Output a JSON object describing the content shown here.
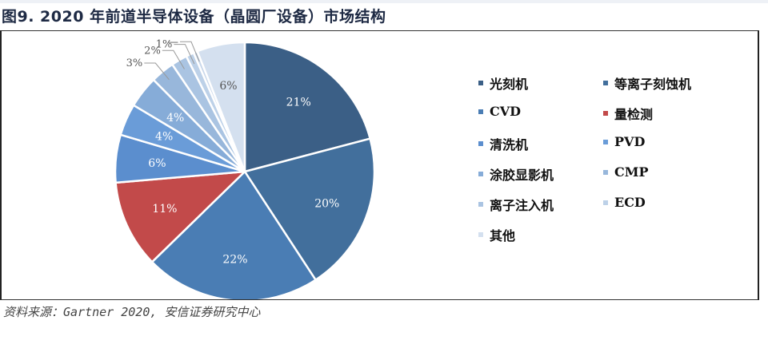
{
  "header": {
    "title": "图9. 2020 年前道半导体设备（晶圆厂设备）市场结构"
  },
  "footer": {
    "source": "资料来源：Gartner 2020, 安信证券研究中心"
  },
  "chart_data": {
    "type": "pie",
    "title": "图9. 2020 年前道半导体设备（晶圆厂设备）市场结构",
    "start_angle_deg": 0,
    "direction": "clockwise",
    "legend_position": "right",
    "slices": [
      {
        "name": "光刻机",
        "value": 21,
        "label": "21%",
        "color": "#3b5f86",
        "label_inside": true
      },
      {
        "name": "等离子刻蚀机",
        "value": 20,
        "label": "20%",
        "color": "#426f9c",
        "label_inside": true
      },
      {
        "name": "CVD",
        "value": 22,
        "label": "22%",
        "color": "#4a7db4",
        "label_inside": true
      },
      {
        "name": "量检测",
        "value": 11,
        "label": "11%",
        "color": "#c24a4a",
        "label_inside": true
      },
      {
        "name": "清洗机",
        "value": 6,
        "label": "6%",
        "color": "#5b8ece",
        "label_inside": true
      },
      {
        "name": "PVD",
        "value": 4,
        "label": "4%",
        "color": "#6a9cd8",
        "label_inside": true
      },
      {
        "name": "涂胶显影机",
        "value": 4,
        "label": "4%",
        "color": "#86acd8",
        "label_inside": true
      },
      {
        "name": "CMP",
        "value": 3,
        "label": "3%",
        "color": "#98b7db",
        "label_inside": false
      },
      {
        "name": "离子注入机",
        "value": 2,
        "label": "2%",
        "color": "#aac4e2",
        "label_inside": false
      },
      {
        "name": "ECD",
        "value": 1,
        "label": "1%",
        "color": "#bdd1e8",
        "label_inside": false
      },
      {
        "name": "—",
        "value": 0.5,
        "label": "—",
        "color": "#c8d7ea",
        "label_inside": false
      },
      {
        "name": "其他",
        "value": 6,
        "label": "6%",
        "color": "#d4e0ef",
        "label_inside": true
      }
    ],
    "legend": [
      {
        "label": "光刻机",
        "color": "#3b5f86"
      },
      {
        "label": "等离子刻蚀机",
        "color": "#426f9c"
      },
      {
        "label": "CVD",
        "color": "#4a7db4"
      },
      {
        "label": "量检测",
        "color": "#c24a4a"
      },
      {
        "label": "清洗机",
        "color": "#5b8ece"
      },
      {
        "label": "PVD",
        "color": "#6a9cd8"
      },
      {
        "label": "涂胶显影机",
        "color": "#86acd8"
      },
      {
        "label": "CMP",
        "color": "#98b7db"
      },
      {
        "label": "离子注入机",
        "color": "#aac4e2"
      },
      {
        "label": "ECD",
        "color": "#bdd1e8"
      },
      {
        "label": "其他",
        "color": "#d4e0ef"
      }
    ]
  }
}
